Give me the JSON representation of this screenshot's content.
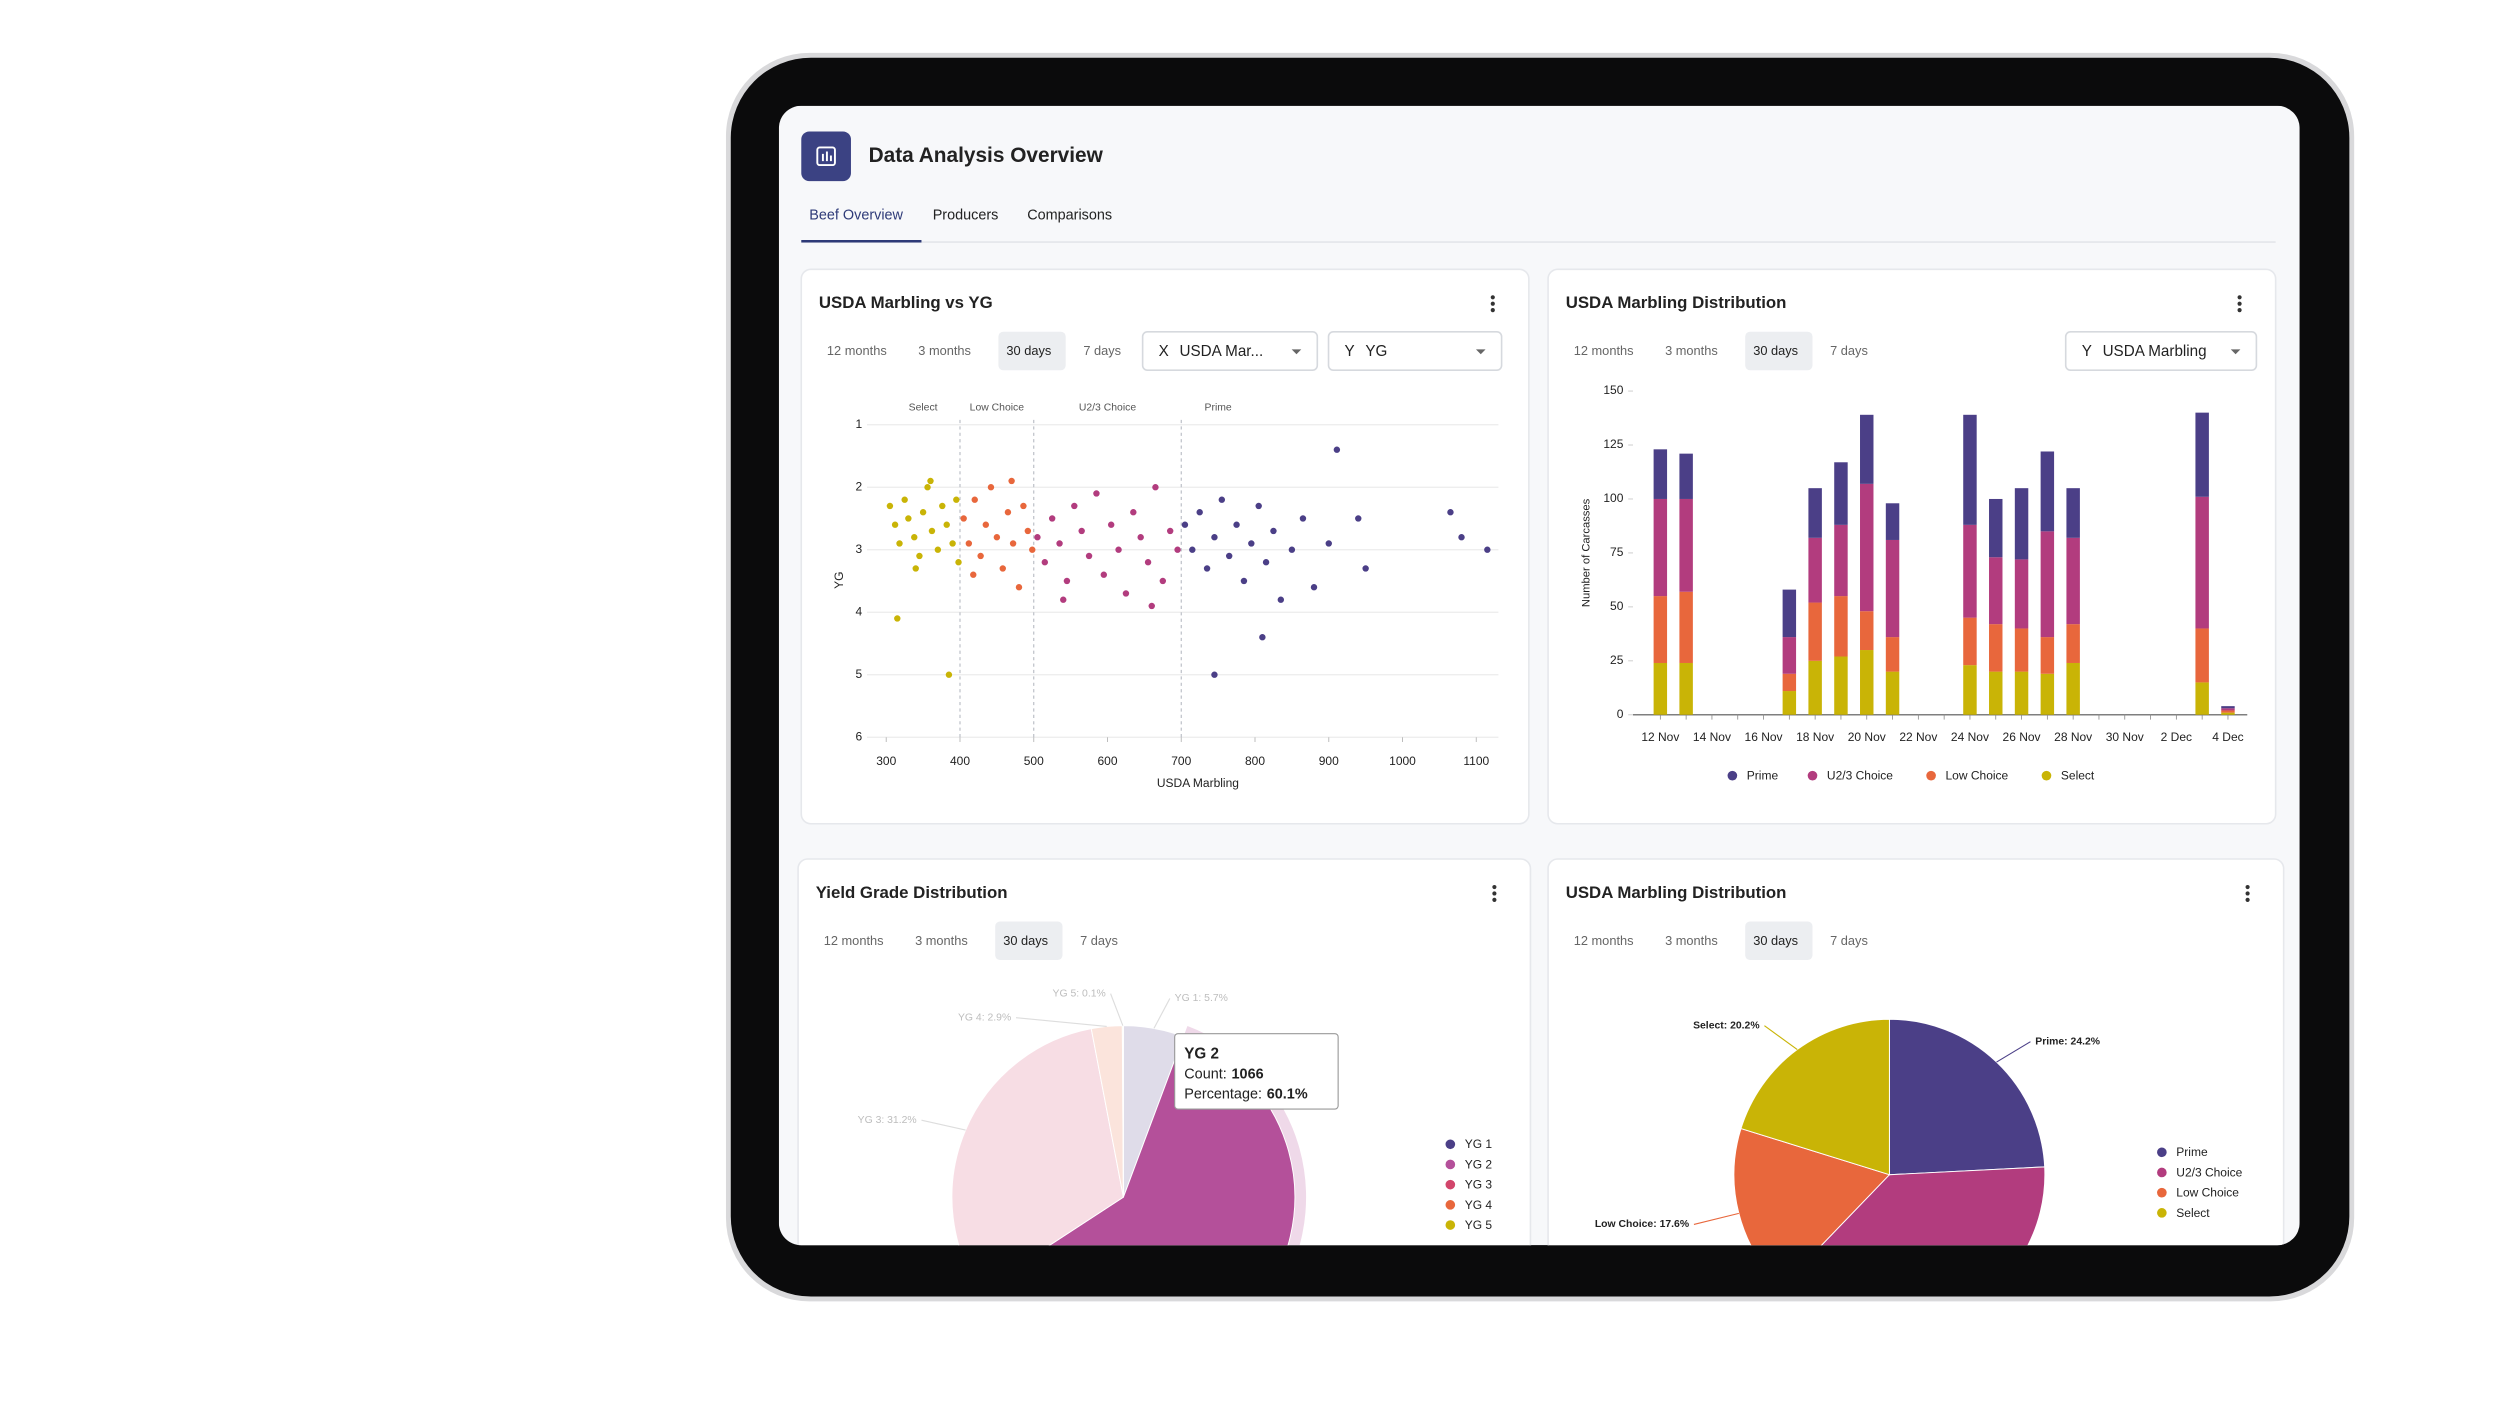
{
  "header": {
    "title": "Data Analysis Overview",
    "tabs": [
      "Beef Overview",
      "Producers",
      "Comparisons"
    ]
  },
  "chart_data": [
    {
      "type": "scatter",
      "title": "USDA Marbling vs YG",
      "time_ranges": [
        "12 months",
        "3 months",
        "30 days",
        "7 days"
      ],
      "selectors": [
        {
          "label": "X",
          "value": "USDA Mar..."
        },
        {
          "label": "Y",
          "value": "YG"
        }
      ],
      "x_label": "USDA Marbling",
      "y_label": "YG",
      "xlim": [
        250,
        1130
      ],
      "ylim": [
        1,
        6
      ],
      "y_inverted": true,
      "xticks": [
        300,
        400,
        500,
        600,
        700,
        800,
        900,
        1000,
        1100
      ],
      "yticks": [
        1,
        2,
        3,
        4,
        5,
        6
      ],
      "grid": true,
      "thresholds": [
        400,
        500,
        700
      ],
      "threshold_labels": [
        "Select",
        "Low Choice",
        "U2/3 Choice",
        "Prime"
      ],
      "series": [
        {
          "color": "#c9b406",
          "x": [
            305,
            312,
            318,
            325,
            330,
            338,
            345,
            350,
            356,
            362,
            370,
            376,
            382,
            390,
            395,
            315,
            385,
            340,
            360,
            398
          ],
          "y": [
            2.3,
            2.6,
            2.9,
            2.2,
            2.5,
            2.8,
            3.1,
            2.4,
            2.0,
            2.7,
            3.0,
            2.3,
            2.6,
            2.9,
            2.2,
            4.1,
            5.0,
            3.3,
            1.9,
            3.2
          ]
        },
        {
          "color": "#e8673c",
          "x": [
            405,
            412,
            420,
            428,
            435,
            442,
            450,
            458,
            465,
            472,
            480,
            486,
            492,
            498,
            418,
            470
          ],
          "y": [
            2.5,
            2.9,
            2.2,
            3.1,
            2.6,
            2.0,
            2.8,
            3.3,
            2.4,
            2.9,
            3.6,
            2.3,
            2.7,
            3.0,
            3.4,
            1.9
          ]
        },
        {
          "color": "#b23c7e",
          "x": [
            505,
            515,
            525,
            535,
            545,
            555,
            565,
            575,
            585,
            595,
            605,
            615,
            625,
            635,
            645,
            655,
            665,
            675,
            685,
            695,
            540,
            660
          ],
          "y": [
            2.8,
            3.2,
            2.5,
            2.9,
            3.5,
            2.3,
            2.7,
            3.1,
            2.1,
            3.4,
            2.6,
            3.0,
            3.7,
            2.4,
            2.8,
            3.2,
            2.0,
            3.5,
            2.7,
            3.0,
            3.8,
            3.9
          ]
        },
        {
          "color": "#4b3f87",
          "x": [
            705,
            715,
            725,
            735,
            745,
            755,
            765,
            775,
            785,
            795,
            805,
            815,
            825,
            835,
            850,
            865,
            880,
            900,
            940,
            1065,
            1080,
            1115,
            911,
            810,
            745,
            950
          ],
          "y": [
            2.6,
            3.0,
            2.4,
            3.3,
            2.8,
            2.2,
            3.1,
            2.6,
            3.5,
            2.9,
            2.3,
            3.2,
            2.7,
            3.8,
            3.0,
            2.5,
            3.6,
            2.9,
            2.5,
            2.4,
            2.8,
            3.0,
            1.4,
            4.4,
            5.0,
            3.3
          ]
        }
      ]
    },
    {
      "type": "bar",
      "stacked": true,
      "title": "USDA Marbling Distribution",
      "time_ranges": [
        "12 months",
        "3 months",
        "30 days",
        "7 days"
      ],
      "selectors": [
        {
          "label": "Y",
          "value": "USDA Marbling"
        }
      ],
      "y_label": "Number of Carcasses",
      "categories": [
        "12 Nov",
        null,
        "14 Nov",
        null,
        "16 Nov",
        null,
        "18 Nov",
        null,
        "20 Nov",
        null,
        "22 Nov",
        null,
        "24 Nov",
        null,
        "26 Nov",
        null,
        "28 Nov",
        null,
        "30 Nov",
        null,
        "2 Dec",
        null,
        "4 Dec"
      ],
      "ylim": [
        0,
        150
      ],
      "yticks": [
        0,
        25,
        50,
        75,
        100,
        125,
        150
      ],
      "legend": "bottom",
      "series": [
        {
          "name": "Prime",
          "color": "#4b3f87",
          "values": [
            23,
            21,
            0,
            0,
            0,
            22,
            23,
            29,
            32,
            17,
            0,
            0,
            51,
            27,
            33,
            37,
            23,
            0,
            0,
            0,
            0,
            39,
            1
          ]
        },
        {
          "name": "U2/3 Choice",
          "color": "#b23c7e",
          "values": [
            45,
            43,
            0,
            0,
            0,
            17,
            30,
            33,
            59,
            45,
            0,
            0,
            43,
            31,
            32,
            49,
            40,
            0,
            0,
            0,
            0,
            61,
            1
          ]
        },
        {
          "name": "Low Choice",
          "color": "#e8673c",
          "values": [
            31,
            33,
            0,
            0,
            0,
            8,
            27,
            28,
            18,
            16,
            0,
            0,
            22,
            22,
            20,
            17,
            18,
            0,
            0,
            0,
            0,
            25,
            1
          ]
        },
        {
          "name": "Select",
          "color": "#c9b406",
          "values": [
            24,
            24,
            0,
            0,
            0,
            11,
            25,
            27,
            30,
            20,
            0,
            0,
            23,
            20,
            20,
            19,
            24,
            0,
            0,
            0,
            0,
            15,
            1
          ]
        }
      ]
    },
    {
      "type": "pie",
      "title": "Yield Grade Distribution",
      "time_ranges": [
        "12 months",
        "3 months",
        "30 days",
        "7 days"
      ],
      "categories": [
        "YG 1",
        "YG 2",
        "YG 3",
        "YG 4",
        "YG 5"
      ],
      "values": [
        5.7,
        60.1,
        31.2,
        2.9,
        0.1
      ],
      "value_labels": [
        "YG 1: 5.7%",
        null,
        "YG 3: 31.2%",
        "YG 4: 2.9%",
        "YG 5: 0.1%"
      ],
      "colors": [
        "#4b3f87",
        "#b4509a",
        "#d2456b",
        "#e8673c",
        "#c9b406"
      ],
      "legend": "right",
      "tooltip": {
        "title": "YG 2",
        "count_label": "Count:",
        "count": 1066,
        "percentage_label": "Percentage:",
        "percentage": "60.1%"
      }
    },
    {
      "type": "pie",
      "title": "USDA Marbling Distribution",
      "time_ranges": [
        "12 months",
        "3 months",
        "30 days",
        "7 days"
      ],
      "categories": [
        "Prime",
        "U2/3 Choice",
        "Low Choice",
        "Select"
      ],
      "values": [
        24.2,
        38.0,
        17.6,
        20.2
      ],
      "value_labels": [
        "Prime: 24.2%",
        null,
        "Low Choice: 17.6%",
        "Select: 20.2%"
      ],
      "colors": [
        "#4b3f87",
        "#b23c7e",
        "#e8673c",
        "#c9b406"
      ],
      "legend": "right"
    }
  ]
}
